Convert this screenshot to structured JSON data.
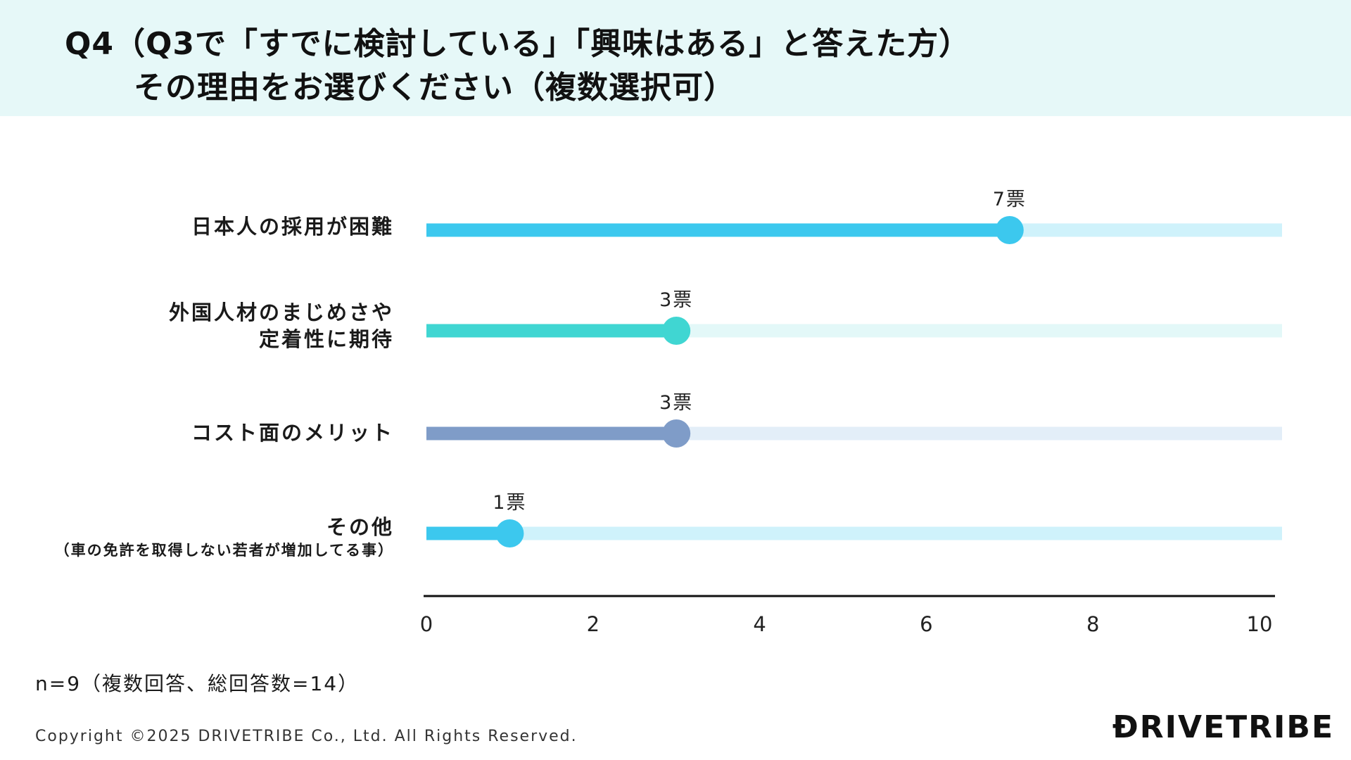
{
  "header": {
    "title_line1": "Q4（Q3で「すでに検討している」「興味はある」と答えた方）",
    "title_line2": "その理由をお選びください（複数選択可）"
  },
  "chart_data": {
    "type": "bar",
    "orientation": "horizontal",
    "categories": [
      "日本人の採用が困難",
      "外国人材のまじめさや定着性に期待",
      "コスト面のメリット",
      "その他（車の免許を取得しない若者が増加してる事）"
    ],
    "category_labels": [
      {
        "lines": [
          "日本人の採用が困難"
        ],
        "sub": ""
      },
      {
        "lines": [
          "外国人材のまじめさや",
          "定着性に期待"
        ],
        "sub": ""
      },
      {
        "lines": [
          "コスト面のメリット"
        ],
        "sub": ""
      },
      {
        "lines": [
          "その他"
        ],
        "sub": "（車の免許を取得しない若者が増加してる事）"
      }
    ],
    "values": [
      7,
      3,
      3,
      1
    ],
    "data_labels": [
      "7票",
      "3票",
      "3票",
      "1票"
    ],
    "colors": [
      "#3cc8ee",
      "#40d6d2",
      "#7f9cc8",
      "#3cc8ee"
    ],
    "track_colors": [
      "#cff2fb",
      "#e3f8f8",
      "#e3eef8",
      "#cff2fb"
    ],
    "xlim": [
      0,
      10
    ],
    "xticks": [
      0,
      2,
      4,
      6,
      8,
      10
    ],
    "grid": false,
    "legend": "none"
  },
  "footer": {
    "note": "n=9（複数回答、総回答数=14）",
    "copyright": "Copyright ©2025 DRIVETRIBE Co., Ltd. All Rights Reserved.",
    "logo": "ĐRIVETRIBE"
  }
}
